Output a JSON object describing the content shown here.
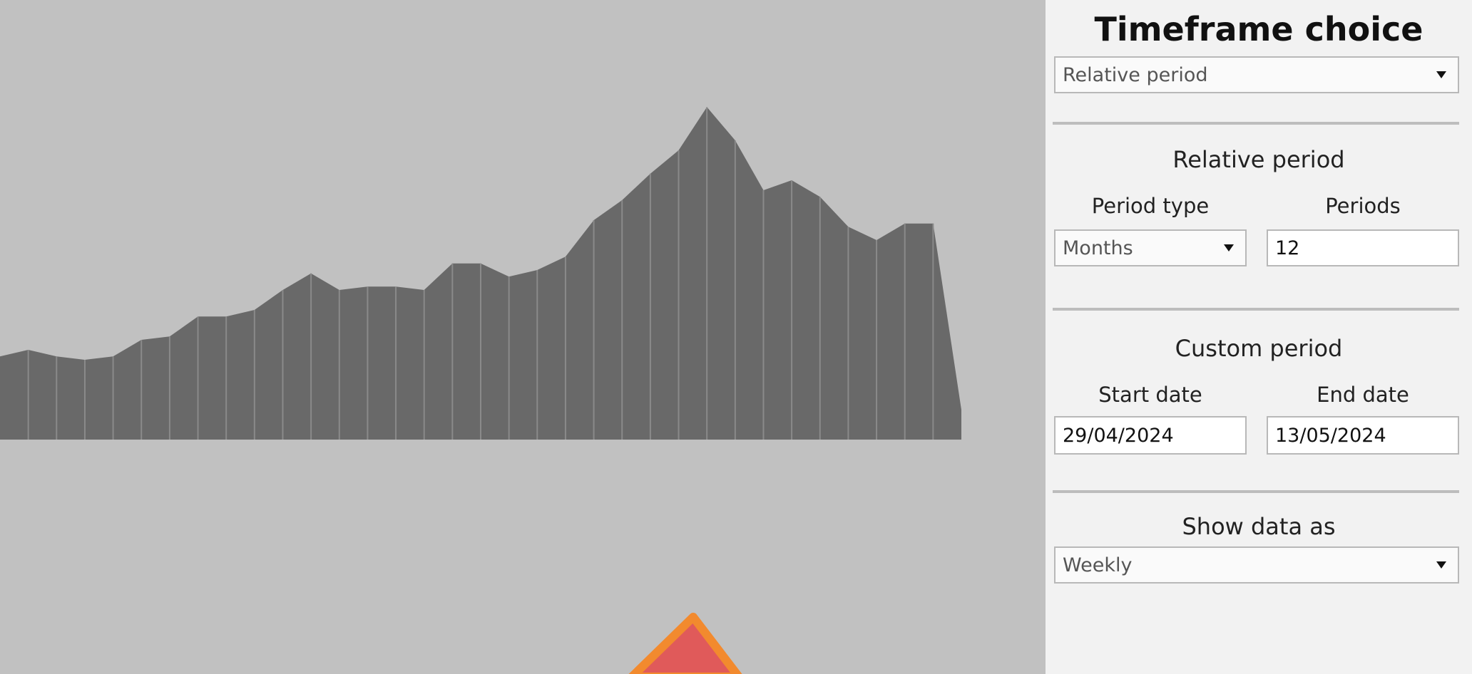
{
  "timeframe": {
    "title": "Timeframe choice",
    "selected": "Relative period"
  },
  "relative_period": {
    "title": "Relative period",
    "period_type_label": "Period type",
    "period_type_value": "Months",
    "periods_label": "Periods",
    "periods_value": "12"
  },
  "custom_period": {
    "title": "Custom period",
    "start_label": "Start date",
    "start_value": "29/04/2024",
    "end_label": "End date",
    "end_value": "13/05/2024"
  },
  "show_data": {
    "title": "Show data as",
    "selected": "Weekly"
  },
  "colors": {
    "background": "#c1c1c1",
    "area_fill": "#696969",
    "panel_bg": "#f2f2f2",
    "marker_fill": "#e05a5a",
    "marker_outline": "#f28a2e"
  },
  "chart_data": {
    "type": "area",
    "values": [
      0.25,
      0.27,
      0.25,
      0.24,
      0.25,
      0.3,
      0.31,
      0.37,
      0.37,
      0.39,
      0.45,
      0.5,
      0.45,
      0.46,
      0.46,
      0.45,
      0.53,
      0.53,
      0.49,
      0.51,
      0.55,
      0.66,
      0.72,
      0.8,
      0.87,
      1.0,
      0.9,
      0.75,
      0.78,
      0.73,
      0.64,
      0.6,
      0.65,
      0.65,
      0.09
    ],
    "ylim": [
      0,
      1.05
    ],
    "grid": false
  }
}
